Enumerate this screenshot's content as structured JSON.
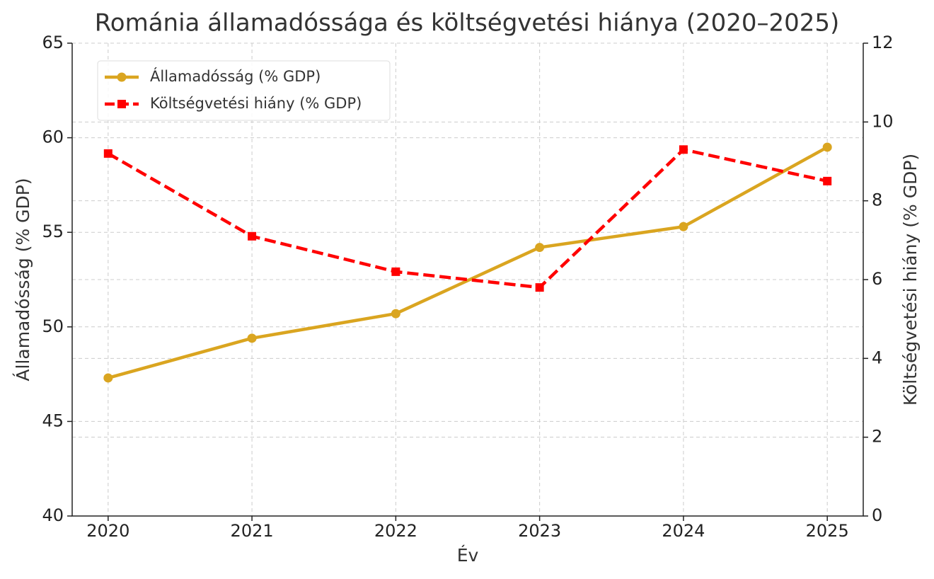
{
  "chart_data": {
    "type": "line",
    "title": "Románia államadóssága és költségvetési hiánya (2020–2025)",
    "x_label": "Év",
    "y_label": "Államadósság (% GDP)",
    "y2_label": "Költségvetési hiány (% GDP)",
    "x": [
      2020,
      2021,
      2022,
      2023,
      2024,
      2025
    ],
    "series": [
      {
        "name": "Államadósság (% GDP)",
        "color": "#daa520",
        "marker": "circle",
        "dash": "solid",
        "values": [
          47.3,
          49.4,
          50.7,
          54.2,
          55.3,
          59.5
        ]
      },
      {
        "name": "Költségvetési hiány (% GDP)",
        "color": "#ff0000",
        "marker": "square",
        "dash": "dashed",
        "axis": "y2",
        "values": [
          9.2,
          7.1,
          6.2,
          5.8,
          9.3,
          8.5
        ]
      }
    ],
    "xlim": [
      2019.75,
      2025.25
    ],
    "xticks": [
      2020,
      2021,
      2022,
      2023,
      2024,
      2025
    ],
    "ylim": [
      40,
      65
    ],
    "yticks": [
      40,
      45,
      50,
      55,
      60,
      65
    ],
    "y2lim": [
      0,
      12
    ],
    "y2ticks": [
      0,
      2,
      4,
      6,
      8,
      10,
      12
    ],
    "grid": true,
    "legend": "upper left"
  }
}
